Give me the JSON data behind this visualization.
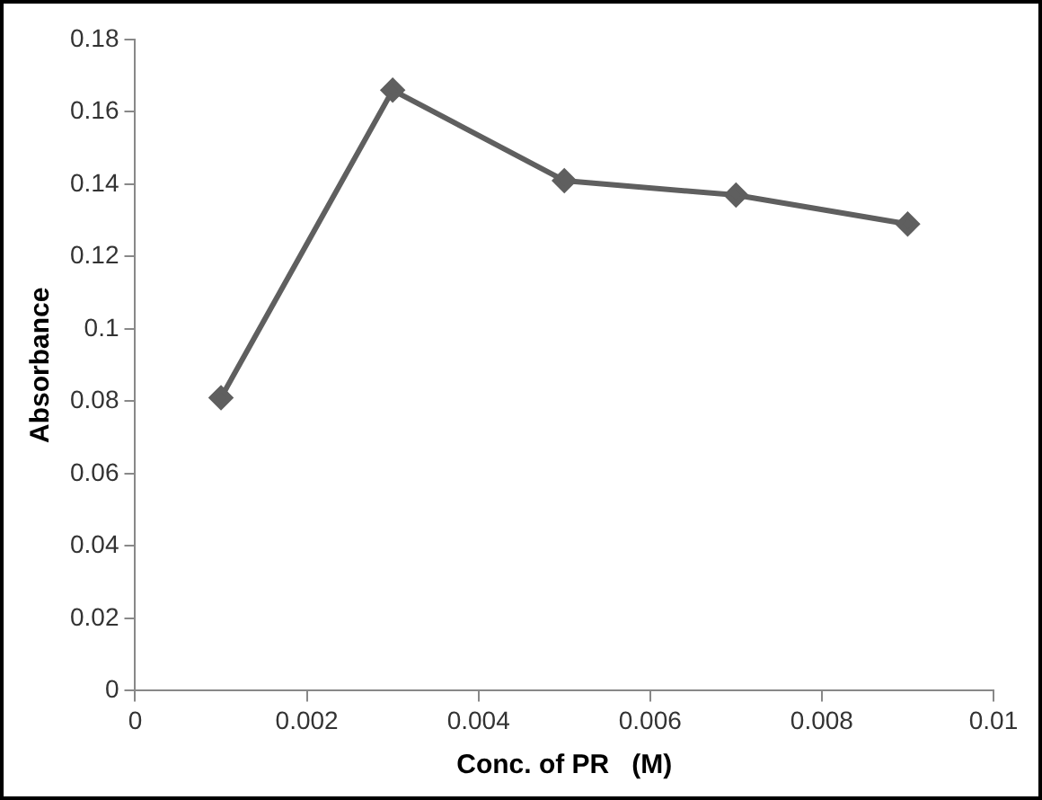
{
  "chart_data": {
    "type": "line",
    "xlabel": "Conc. of PR   (M)",
    "ylabel": "Absorbance",
    "x": [
      0.001,
      0.003,
      0.005,
      0.007,
      0.009
    ],
    "series": [
      {
        "color": "#5f5f5f",
        "values": [
          0.081,
          0.166,
          0.141,
          0.137,
          0.129
        ]
      }
    ],
    "xlim": [
      0,
      0.01
    ],
    "xticks": [
      0,
      0.002,
      0.004,
      0.006,
      0.008,
      0.01
    ],
    "ylim": [
      0,
      0.18
    ],
    "yticks": [
      0,
      0.02,
      0.04,
      0.06,
      0.08,
      0.1,
      0.12,
      0.14,
      0.16,
      0.18
    ],
    "grid": false,
    "legend": false,
    "marker": "diamond",
    "line_style": "solid"
  }
}
